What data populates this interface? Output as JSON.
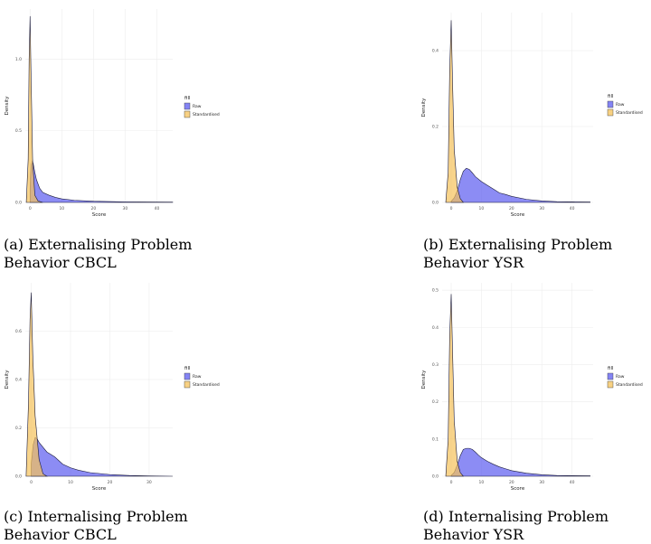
{
  "colors": {
    "raw": "#5b5bf0",
    "standardised": "#f5c25a",
    "grid": "#ececec"
  },
  "legend": {
    "title": "fill",
    "labels": [
      "Raw",
      "Standardised"
    ]
  },
  "captions": [
    "(a) Externalising Problem Behavior CBCL",
    "(b) Externalising Problem Behavior YSR",
    "(c) Internalising Problem Behavior CBCL",
    "(d) Internalising Problem Behavior YSR"
  ],
  "chart_data": [
    {
      "type": "area",
      "title": "(a) Externalising Problem Behavior CBCL",
      "xlabel": "Score",
      "ylabel": "Density",
      "xlim": [
        -1.5,
        45
      ],
      "ylim": [
        0,
        1.35
      ],
      "xticks": [
        0,
        10,
        20,
        30,
        40
      ],
      "yticks": [
        0.0,
        0.5,
        1.0
      ],
      "ytick_labels": [
        "0.0",
        "0.5",
        "1.0"
      ],
      "series": [
        {
          "name": "Raw",
          "x": [
            0,
            0.3,
            0.7,
            1,
            1.5,
            2,
            3,
            4,
            6,
            8,
            10,
            14,
            20,
            30,
            45
          ],
          "y": [
            0.1,
            0.26,
            0.29,
            0.27,
            0.21,
            0.16,
            0.1,
            0.07,
            0.05,
            0.035,
            0.025,
            0.015,
            0.008,
            0.004,
            0.002
          ]
        },
        {
          "name": "Standardised",
          "x": [
            -1.2,
            -0.6,
            -0.3,
            0,
            0.3,
            0.8,
            1.5,
            2.5,
            4
          ],
          "y": [
            0.0,
            0.3,
            1.0,
            1.3,
            0.9,
            0.3,
            0.05,
            0.01,
            0.0
          ]
        }
      ]
    },
    {
      "type": "area",
      "title": "(b) Externalising Problem Behavior YSR",
      "xlabel": "Score",
      "ylabel": "Density",
      "xlim": [
        -3,
        47
      ],
      "ylim": [
        0,
        0.5
      ],
      "xticks": [
        0,
        10,
        20,
        30,
        40
      ],
      "yticks": [
        0.0,
        0.2,
        0.4
      ],
      "ytick_labels": [
        "0.0",
        "0.2",
        "0.4"
      ],
      "series": [
        {
          "name": "Raw",
          "x": [
            0,
            1,
            2,
            3,
            4,
            5,
            6,
            7,
            8,
            10,
            12,
            14,
            16,
            18,
            20,
            25,
            30,
            35,
            46
          ],
          "y": [
            0.003,
            0.012,
            0.03,
            0.06,
            0.082,
            0.09,
            0.087,
            0.078,
            0.068,
            0.055,
            0.045,
            0.035,
            0.025,
            0.021,
            0.016,
            0.008,
            0.004,
            0.002,
            0.001
          ]
        },
        {
          "name": "Standardised",
          "x": [
            -1.8,
            -1,
            -0.5,
            0,
            0.5,
            1,
            2,
            3,
            4
          ],
          "y": [
            0.0,
            0.08,
            0.35,
            0.48,
            0.3,
            0.14,
            0.04,
            0.01,
            0.0
          ]
        }
      ]
    },
    {
      "type": "area",
      "title": "(c) Internalising Problem Behavior CBCL",
      "xlabel": "Score",
      "ylabel": "Density",
      "xlim": [
        -1.5,
        36
      ],
      "ylim": [
        0,
        0.8
      ],
      "xticks": [
        0,
        10,
        20,
        30
      ],
      "yticks": [
        0.0,
        0.2,
        0.4,
        0.6
      ],
      "ytick_labels": [
        "0.0",
        "0.2",
        "0.4",
        "0.6"
      ],
      "series": [
        {
          "name": "Raw",
          "x": [
            0,
            0.5,
            1,
            1.5,
            2,
            3,
            4,
            5,
            6,
            7,
            8,
            10,
            12,
            15,
            20,
            25,
            30,
            36
          ],
          "y": [
            0.05,
            0.13,
            0.16,
            0.155,
            0.14,
            0.12,
            0.1,
            0.09,
            0.08,
            0.065,
            0.05,
            0.035,
            0.025,
            0.015,
            0.007,
            0.003,
            0.001,
            0.0
          ]
        },
        {
          "name": "Standardised",
          "x": [
            -1.3,
            -0.7,
            -0.3,
            0,
            0.4,
            1,
            2,
            3,
            4
          ],
          "y": [
            0.0,
            0.3,
            0.65,
            0.76,
            0.5,
            0.25,
            0.07,
            0.01,
            0.0
          ]
        }
      ]
    },
    {
      "type": "area",
      "title": "(d) Internalising Problem Behavior YSR",
      "xlabel": "Score",
      "ylabel": "Density",
      "xlim": [
        -3,
        47
      ],
      "ylim": [
        0,
        0.52
      ],
      "xticks": [
        0,
        10,
        20,
        30,
        40
      ],
      "yticks": [
        0.0,
        0.1,
        0.2,
        0.3,
        0.4,
        0.5
      ],
      "ytick_labels": [
        "0.0",
        "0.1",
        "0.2",
        "0.3",
        "0.4",
        "0.5"
      ],
      "series": [
        {
          "name": "Raw",
          "x": [
            0,
            1,
            2,
            3,
            4,
            5,
            6,
            7,
            8,
            9,
            10,
            12,
            14,
            16,
            18,
            20,
            25,
            30,
            35,
            46
          ],
          "y": [
            0.002,
            0.01,
            0.03,
            0.055,
            0.072,
            0.075,
            0.075,
            0.072,
            0.065,
            0.057,
            0.05,
            0.04,
            0.032,
            0.025,
            0.02,
            0.015,
            0.008,
            0.004,
            0.002,
            0.001
          ]
        },
        {
          "name": "Standardised",
          "x": [
            -1.8,
            -1,
            -0.5,
            0,
            0.5,
            1,
            2,
            3,
            4
          ],
          "y": [
            0.0,
            0.1,
            0.38,
            0.49,
            0.32,
            0.15,
            0.04,
            0.01,
            0.0
          ]
        }
      ]
    }
  ]
}
